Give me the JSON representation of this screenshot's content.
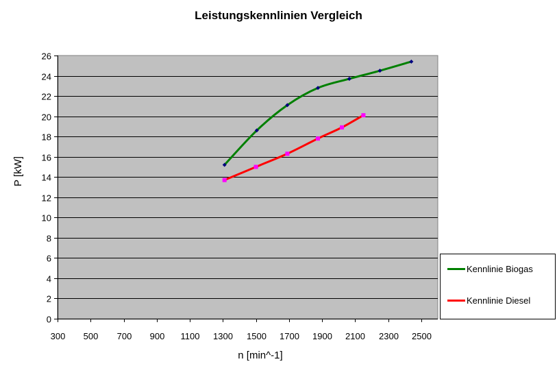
{
  "chart_data": {
    "type": "line",
    "title": "Leistungskennlinien Vergleich",
    "xlabel": "n [min^-1]",
    "ylabel": "P [kW]",
    "xlim": [
      300,
      2600
    ],
    "ylim": [
      0,
      26
    ],
    "x_ticks": [
      300,
      500,
      700,
      900,
      1100,
      1300,
      1500,
      1700,
      1900,
      2100,
      2300,
      2500
    ],
    "y_ticks": [
      0,
      2,
      4,
      6,
      8,
      10,
      12,
      14,
      16,
      18,
      20,
      22,
      24,
      26
    ],
    "grid": "horizontal major gridlines",
    "plot_background": "#c0c0c0",
    "legend_position": "right",
    "series": [
      {
        "name": "Kennlinie Biogas",
        "color": "#008000",
        "marker_color": "#000080",
        "marker": "diamond",
        "smooth": true,
        "x": [
          1310,
          1505,
          1690,
          1875,
          2065,
          2250,
          2440
        ],
        "y": [
          15.2,
          18.6,
          21.1,
          22.8,
          23.7,
          24.5,
          25.4
        ]
      },
      {
        "name": "Kennlinie Diesel",
        "color": "#ff0000",
        "marker_color": "#ff00ff",
        "marker": "square",
        "smooth": true,
        "x": [
          1310,
          1500,
          1690,
          1875,
          2020,
          2150
        ],
        "y": [
          13.7,
          15.0,
          16.3,
          17.8,
          18.9,
          20.1
        ]
      }
    ]
  },
  "legend": {
    "items": [
      {
        "label": "Kennlinie Biogas",
        "color": "#008000"
      },
      {
        "label": "Kennlinie Diesel",
        "color": "#ff0000"
      }
    ]
  }
}
